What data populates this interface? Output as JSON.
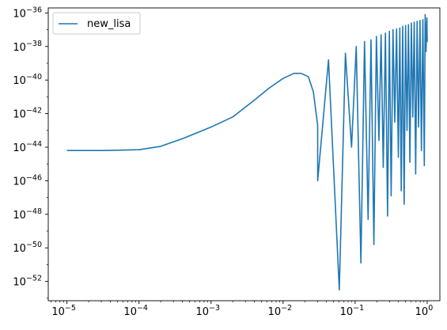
{
  "chart_data": {
    "type": "line",
    "title": "",
    "xlabel": "",
    "ylabel": "",
    "xscale": "log",
    "yscale": "log",
    "xlim": [
      5.5e-06,
      1.5
    ],
    "ylim_exponents": [
      -53.15,
      -35.7
    ],
    "x_ticks": [
      {
        "base": "10",
        "exp": "−5",
        "value": -5
      },
      {
        "base": "10",
        "exp": "−4",
        "value": -4
      },
      {
        "base": "10",
        "exp": "−3",
        "value": -3
      },
      {
        "base": "10",
        "exp": "−2",
        "value": -2
      },
      {
        "base": "10",
        "exp": "−1",
        "value": -1
      },
      {
        "base": "10",
        "exp": "0",
        "value": 0
      }
    ],
    "y_ticks": [
      {
        "base": "10",
        "exp": "−36",
        "value": -36
      },
      {
        "base": "10",
        "exp": "−38",
        "value": -38
      },
      {
        "base": "10",
        "exp": "−40",
        "value": -40
      },
      {
        "base": "10",
        "exp": "−42",
        "value": -42
      },
      {
        "base": "10",
        "exp": "−44",
        "value": -44
      },
      {
        "base": "10",
        "exp": "−46",
        "value": -46
      },
      {
        "base": "10",
        "exp": "−48",
        "value": -48
      },
      {
        "base": "10",
        "exp": "−50",
        "value": -50
      },
      {
        "base": "10",
        "exp": "−52",
        "value": -52
      }
    ],
    "legend": {
      "placement": "upper-left",
      "entries": [
        "new_lisa"
      ]
    },
    "grid": false,
    "series": [
      {
        "name": "new_lisa",
        "color": "#1f77b4",
        "log10_x": [
          -5.0,
          -4.5,
          -4.0,
          -3.7,
          -3.4,
          -3.0,
          -2.7,
          -2.4,
          -2.2,
          -2.0,
          -1.85,
          -1.75,
          -1.65,
          -1.58,
          -1.52
        ],
        "log10_y": [
          -44.2,
          -44.2,
          -44.15,
          -43.95,
          -43.5,
          -42.8,
          -42.2,
          -41.2,
          -40.5,
          -39.9,
          -39.6,
          -39.6,
          -39.8,
          -40.7,
          -42.7
        ],
        "description_values": "smooth segment; beyond log10_x -1.52 the curve oscillates with envelope near 1e-38 to 1e-36 and dips listed below",
        "dips_log10_x": [
          -1.52,
          -1.22,
          -1.05,
          -0.92,
          -0.82,
          -0.74,
          -0.67,
          -0.61,
          -0.55,
          -0.5,
          -0.45,
          -0.4,
          -0.36,
          -0.32,
          -0.28,
          -0.24,
          -0.2,
          -0.16,
          -0.12,
          -0.08,
          -0.04
        ],
        "dips_log10_y": [
          -46.0,
          -52.5,
          -44.0,
          -50.9,
          -48.3,
          -49.8,
          -43.6,
          -45.2,
          -48.1,
          -46.9,
          -42.5,
          -44.6,
          -46.6,
          -47.4,
          -43.0,
          -44.9,
          -42.2,
          -45.6,
          -42.8,
          -44.2,
          -45.1
        ],
        "peaks_log10_y": [
          -40.1,
          -38.8,
          -38.4,
          -38.0,
          -37.7,
          -37.6,
          -37.4,
          -37.3,
          -37.2,
          -37.1,
          -37.0,
          -36.95,
          -36.9,
          -36.8,
          -36.75,
          -36.7,
          -36.6,
          -36.55,
          -36.5,
          -36.45,
          -36.4
        ]
      }
    ]
  }
}
